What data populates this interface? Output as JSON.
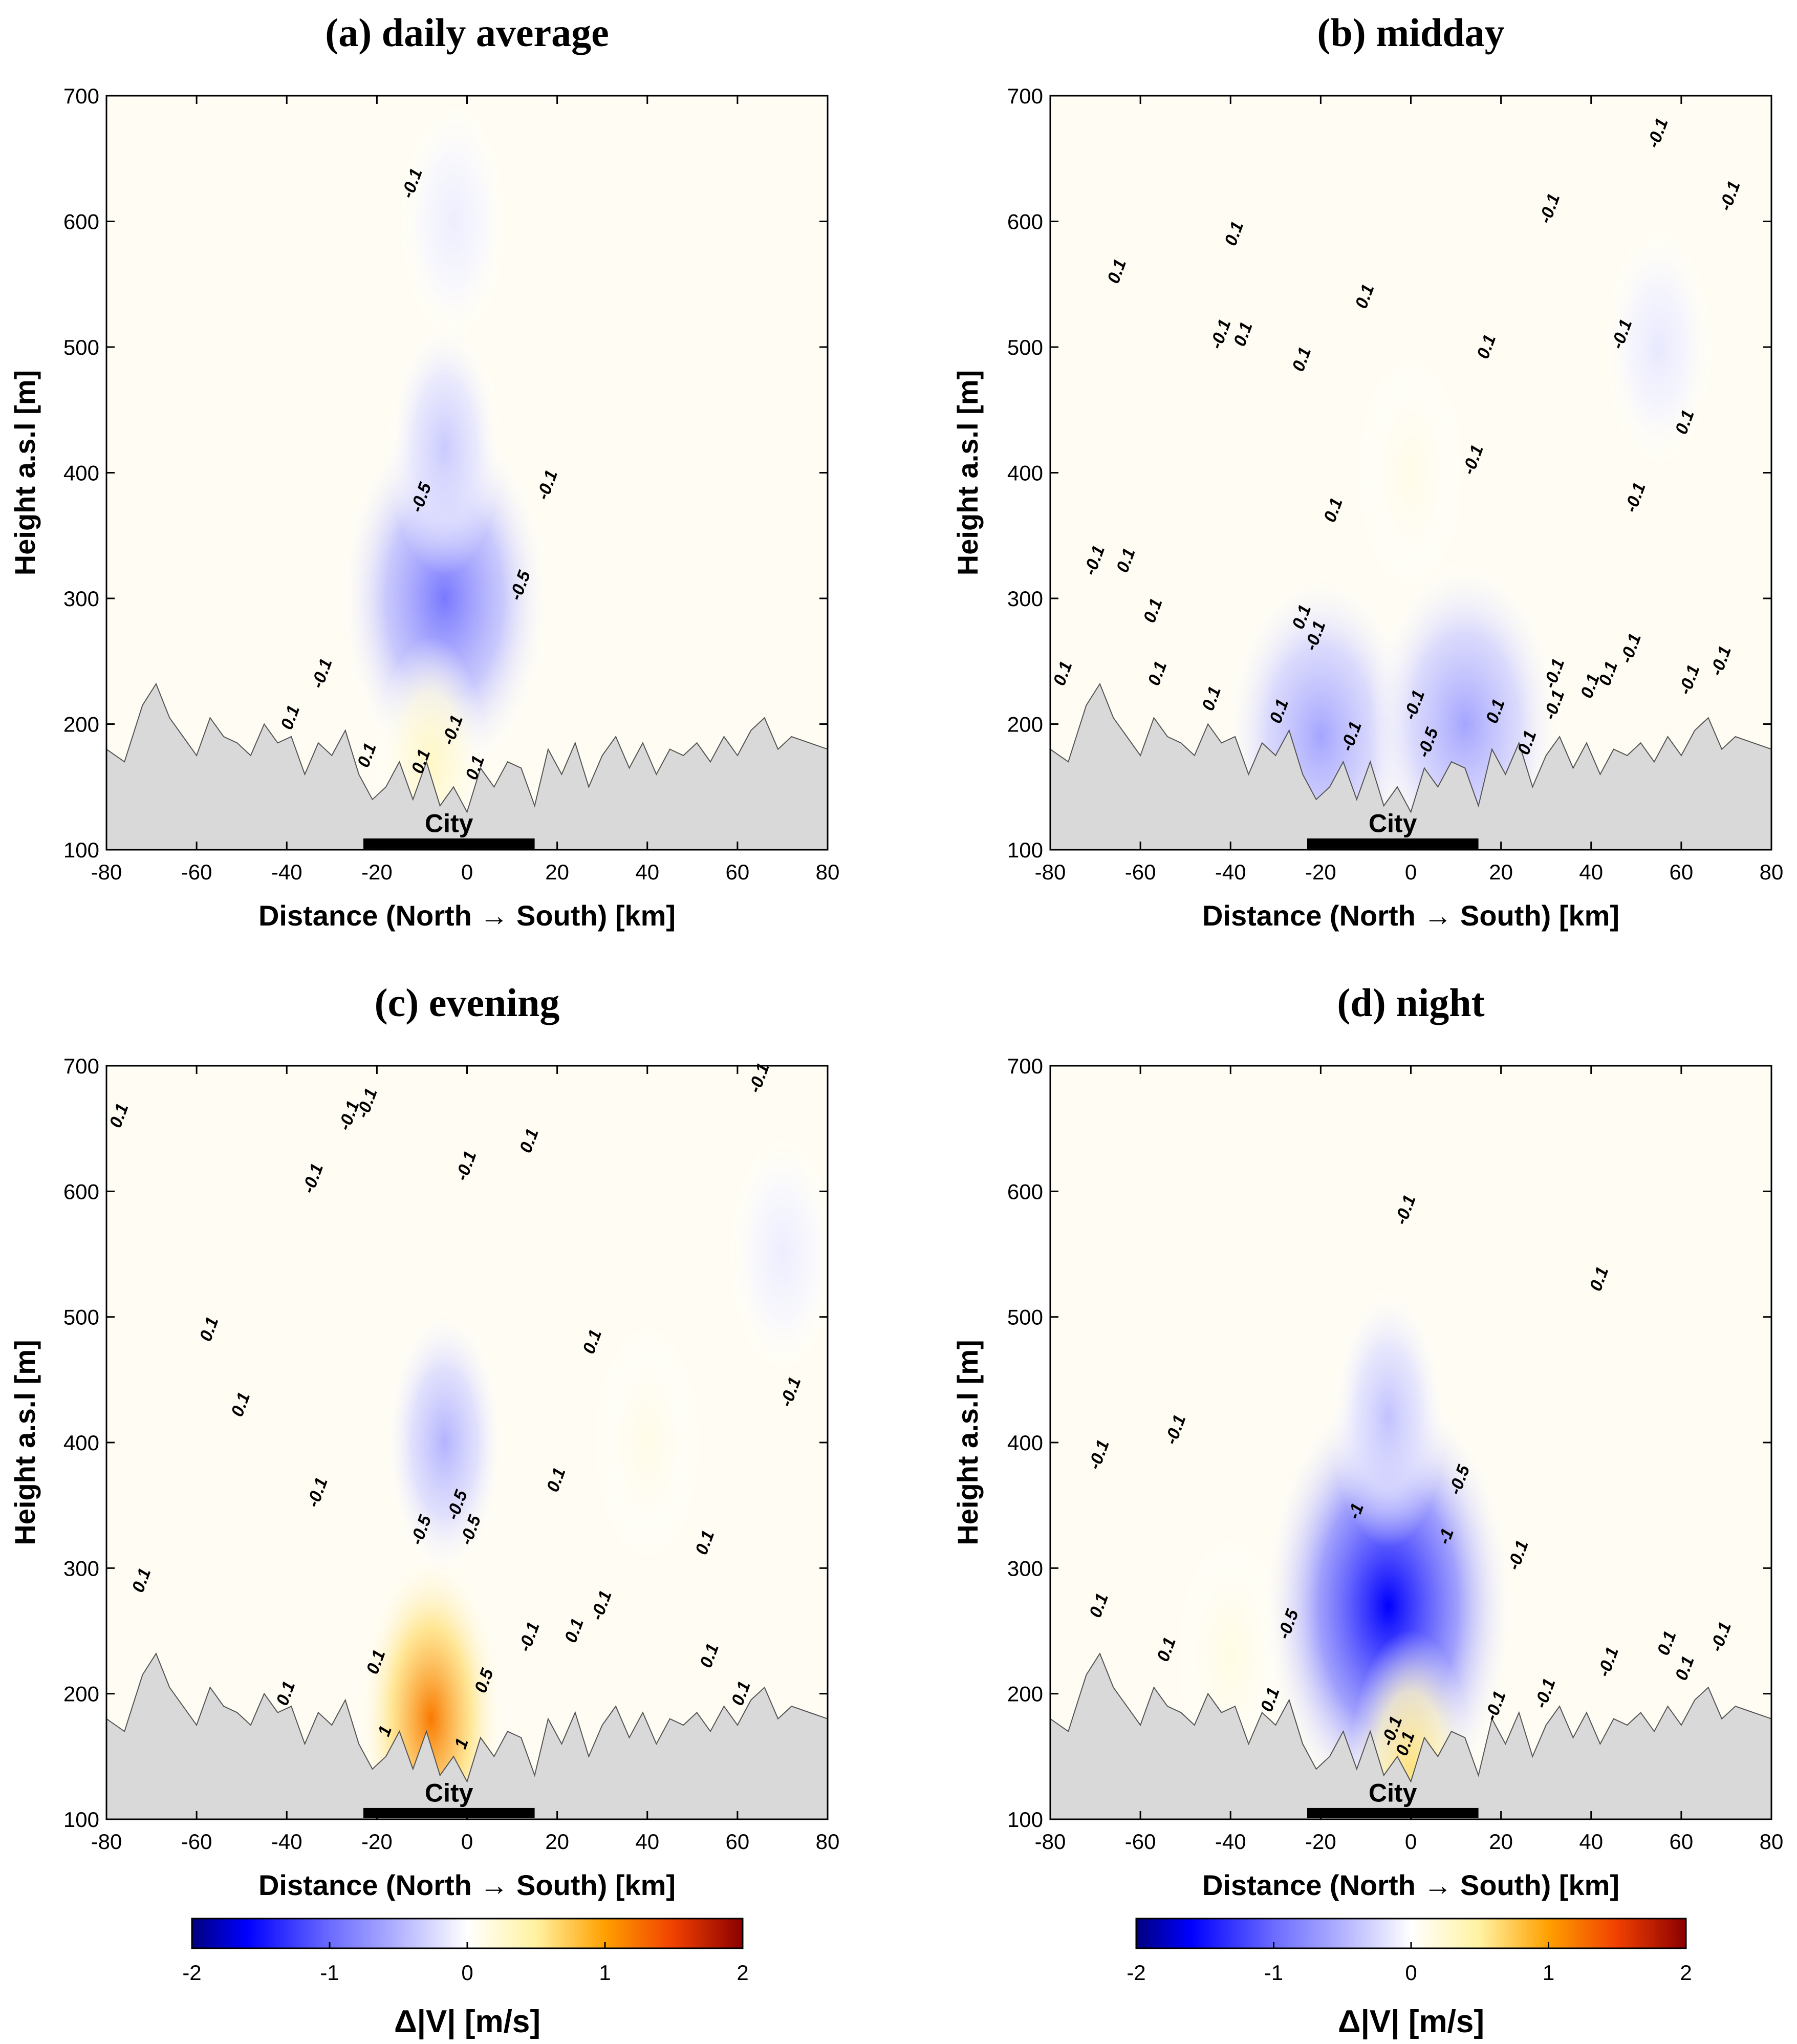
{
  "chart_data": [
    {
      "type": "heatmap",
      "title": "(a) daily average",
      "xlabel": "Distance (North → South) [km]",
      "ylabel": "Height a.s.l [m]",
      "xlim": [
        -80,
        80
      ],
      "ylim": [
        100,
        700
      ],
      "xticks": [
        -80,
        -60,
        -40,
        -20,
        0,
        20,
        40,
        60,
        80
      ],
      "yticks": [
        100,
        200,
        300,
        400,
        500,
        600,
        700
      ],
      "city_label": "City",
      "city_extent": [
        -23,
        15
      ],
      "anomalies": [
        {
          "x": -5,
          "y": 300,
          "value": -0.9
        },
        {
          "x": -5,
          "y": 420,
          "value": -0.35
        },
        {
          "x": -3,
          "y": 600,
          "value": -0.12
        },
        {
          "x": -8,
          "y": 170,
          "value": 0.3
        }
      ],
      "contour_labels": [
        {
          "x": -12,
          "y": 630,
          "text": "-0.1"
        },
        {
          "x": -10,
          "y": 380,
          "text": "-0.5"
        },
        {
          "x": 12,
          "y": 310,
          "text": "-0.5"
        },
        {
          "x": 18,
          "y": 390,
          "text": "-0.1"
        },
        {
          "x": -32,
          "y": 240,
          "text": "-0.1"
        },
        {
          "x": -39,
          "y": 205,
          "text": "0.1"
        },
        {
          "x": -22,
          "y": 175,
          "text": "0.1"
        },
        {
          "x": -10,
          "y": 170,
          "text": "0.1"
        },
        {
          "x": -3,
          "y": 195,
          "text": "-0.1"
        },
        {
          "x": 2,
          "y": 165,
          "text": "0.1"
        }
      ]
    },
    {
      "type": "heatmap",
      "title": "(b) midday",
      "xlabel": "Distance (North → South) [km]",
      "ylabel": "Height a.s.l [m]",
      "xlim": [
        -80,
        80
      ],
      "ylim": [
        100,
        700
      ],
      "xticks": [
        -80,
        -60,
        -40,
        -20,
        0,
        20,
        40,
        60,
        80
      ],
      "yticks": [
        100,
        200,
        300,
        400,
        500,
        600,
        700
      ],
      "city_label": "City",
      "city_extent": [
        -23,
        15
      ],
      "anomalies": [
        {
          "x": -20,
          "y": 190,
          "value": -0.6
        },
        {
          "x": 12,
          "y": 200,
          "value": -0.6
        },
        {
          "x": 0,
          "y": 400,
          "value": 0.12
        },
        {
          "x": 55,
          "y": 500,
          "value": -0.15
        }
      ],
      "contour_labels": [
        {
          "x": -77,
          "y": 240,
          "text": "0.1"
        },
        {
          "x": -70,
          "y": 330,
          "text": "-0.1"
        },
        {
          "x": -63,
          "y": 330,
          "text": "0.1"
        },
        {
          "x": -65,
          "y": 560,
          "text": "0.1"
        },
        {
          "x": -57,
          "y": 290,
          "text": "0.1"
        },
        {
          "x": -56,
          "y": 240,
          "text": "0.1"
        },
        {
          "x": -44,
          "y": 220,
          "text": "0.1"
        },
        {
          "x": -42,
          "y": 510,
          "text": "-0.1"
        },
        {
          "x": -39,
          "y": 590,
          "text": "0.1"
        },
        {
          "x": -37,
          "y": 510,
          "text": "0.1"
        },
        {
          "x": -29,
          "y": 210,
          "text": "0.1"
        },
        {
          "x": -24,
          "y": 490,
          "text": "0.1"
        },
        {
          "x": -24,
          "y": 285,
          "text": "0.1"
        },
        {
          "x": -21,
          "y": 270,
          "text": "-0.1"
        },
        {
          "x": -17,
          "y": 370,
          "text": "0.1"
        },
        {
          "x": -13,
          "y": 190,
          "text": "-0.1"
        },
        {
          "x": -10,
          "y": 540,
          "text": "0.1"
        },
        {
          "x": 1,
          "y": 215,
          "text": "-0.1"
        },
        {
          "x": 4,
          "y": 185,
          "text": "-0.5"
        },
        {
          "x": 14,
          "y": 410,
          "text": "-0.1"
        },
        {
          "x": 17,
          "y": 500,
          "text": "0.1"
        },
        {
          "x": 19,
          "y": 210,
          "text": "0.1"
        },
        {
          "x": 26,
          "y": 185,
          "text": "0.1"
        },
        {
          "x": 31,
          "y": 610,
          "text": "-0.1"
        },
        {
          "x": 32,
          "y": 240,
          "text": "-0.1"
        },
        {
          "x": 32,
          "y": 215,
          "text": "-0.1"
        },
        {
          "x": 40,
          "y": 230,
          "text": "0.1"
        },
        {
          "x": 44,
          "y": 240,
          "text": "0.1"
        },
        {
          "x": 47,
          "y": 510,
          "text": "-0.1"
        },
        {
          "x": 49,
          "y": 260,
          "text": "-0.1"
        },
        {
          "x": 50,
          "y": 380,
          "text": "-0.1"
        },
        {
          "x": 61,
          "y": 440,
          "text": "0.1"
        },
        {
          "x": 62,
          "y": 235,
          "text": "-0.1"
        },
        {
          "x": 69,
          "y": 250,
          "text": "-0.1"
        },
        {
          "x": 55,
          "y": 670,
          "text": "-0.1"
        },
        {
          "x": 71,
          "y": 620,
          "text": "-0.1"
        }
      ]
    },
    {
      "type": "heatmap",
      "title": "(c) evening",
      "xlabel": "Distance (North → South) [km]",
      "ylabel": "Height a.s.l [m]",
      "xlim": [
        -80,
        80
      ],
      "ylim": [
        100,
        700
      ],
      "xticks": [
        -80,
        -60,
        -40,
        -20,
        0,
        20,
        40,
        60,
        80
      ],
      "yticks": [
        100,
        200,
        300,
        400,
        500,
        600,
        700
      ],
      "city_label": "City",
      "city_extent": [
        -23,
        15
      ],
      "anomalies": [
        {
          "x": -8,
          "y": 180,
          "value": 1.2
        },
        {
          "x": -5,
          "y": 400,
          "value": -0.5
        },
        {
          "x": 40,
          "y": 400,
          "value": 0.12
        },
        {
          "x": 70,
          "y": 550,
          "value": -0.12
        }
      ],
      "contour_labels": [
        {
          "x": -77,
          "y": 660,
          "text": "0.1"
        },
        {
          "x": -57,
          "y": 490,
          "text": "0.1"
        },
        {
          "x": -50,
          "y": 430,
          "text": "0.1"
        },
        {
          "x": -34,
          "y": 610,
          "text": "-0.1"
        },
        {
          "x": -33,
          "y": 360,
          "text": "-0.1"
        },
        {
          "x": -26,
          "y": 660,
          "text": "-0.1"
        },
        {
          "x": -22,
          "y": 670,
          "text": "-0.1"
        },
        {
          "x": -10,
          "y": 330,
          "text": "-0.5"
        },
        {
          "x": 0,
          "y": 620,
          "text": "-0.1"
        },
        {
          "x": -2,
          "y": 350,
          "text": "-0.5"
        },
        {
          "x": 1,
          "y": 330,
          "text": "-0.5"
        },
        {
          "x": 14,
          "y": 640,
          "text": "0.1"
        },
        {
          "x": -72,
          "y": 290,
          "text": "0.1"
        },
        {
          "x": -40,
          "y": 200,
          "text": "0.1"
        },
        {
          "x": -20,
          "y": 225,
          "text": "0.1"
        },
        {
          "x": -18,
          "y": 170,
          "text": "1"
        },
        {
          "x": -1,
          "y": 160,
          "text": "1"
        },
        {
          "x": 4,
          "y": 210,
          "text": "0.5"
        },
        {
          "x": 14,
          "y": 245,
          "text": "-0.1"
        },
        {
          "x": 20,
          "y": 370,
          "text": "0.1"
        },
        {
          "x": 24,
          "y": 250,
          "text": "0.1"
        },
        {
          "x": 30,
          "y": 270,
          "text": "-0.1"
        },
        {
          "x": 28,
          "y": 480,
          "text": "0.1"
        },
        {
          "x": 53,
          "y": 320,
          "text": "0.1"
        },
        {
          "x": 54,
          "y": 230,
          "text": "0.1"
        },
        {
          "x": 61,
          "y": 200,
          "text": "0.1"
        },
        {
          "x": 72,
          "y": 440,
          "text": "-0.1"
        },
        {
          "x": 65,
          "y": 690,
          "text": "-0.1"
        }
      ]
    },
    {
      "type": "heatmap",
      "title": "(d) night",
      "xlabel": "Distance (North → South) [km]",
      "ylabel": "Height a.s.l [m]",
      "xlim": [
        -80,
        80
      ],
      "ylim": [
        100,
        700
      ],
      "xticks": [
        -80,
        -60,
        -40,
        -20,
        0,
        20,
        40,
        60,
        80
      ],
      "yticks": [
        100,
        200,
        300,
        400,
        500,
        600,
        700
      ],
      "city_label": "City",
      "city_extent": [
        -23,
        15
      ],
      "anomalies": [
        {
          "x": -5,
          "y": 270,
          "value": -1.6
        },
        {
          "x": -5,
          "y": 420,
          "value": -0.4
        },
        {
          "x": 0,
          "y": 140,
          "value": 0.6
        },
        {
          "x": -40,
          "y": 230,
          "value": 0.15
        }
      ],
      "contour_labels": [
        {
          "x": -1,
          "y": 585,
          "text": "-0.1"
        },
        {
          "x": 42,
          "y": 530,
          "text": "0.1"
        },
        {
          "x": -69,
          "y": 390,
          "text": "-0.1"
        },
        {
          "x": -52,
          "y": 410,
          "text": "-0.1"
        },
        {
          "x": -12,
          "y": 345,
          "text": "-1"
        },
        {
          "x": 11,
          "y": 370,
          "text": "-0.5"
        },
        {
          "x": 8,
          "y": 325,
          "text": "-1"
        },
        {
          "x": 24,
          "y": 310,
          "text": "-0.1"
        },
        {
          "x": -69,
          "y": 270,
          "text": "0.1"
        },
        {
          "x": -54,
          "y": 235,
          "text": "0.1"
        },
        {
          "x": -27,
          "y": 255,
          "text": "-0.5"
        },
        {
          "x": -31,
          "y": 195,
          "text": "0.1"
        },
        {
          "x": -4,
          "y": 170,
          "text": "-0.1"
        },
        {
          "x": -1,
          "y": 160,
          "text": "0.1"
        },
        {
          "x": 19,
          "y": 190,
          "text": "-0.1"
        },
        {
          "x": 30,
          "y": 200,
          "text": "-0.1"
        },
        {
          "x": 44,
          "y": 225,
          "text": "-0.1"
        },
        {
          "x": 57,
          "y": 240,
          "text": "0.1"
        },
        {
          "x": 61,
          "y": 220,
          "text": "0.1"
        },
        {
          "x": 69,
          "y": 245,
          "text": "-0.1"
        }
      ]
    }
  ],
  "terrain_km": [
    -80,
    -76,
    -72,
    -69,
    -66,
    -63,
    -60,
    -57,
    -54,
    -51,
    -48,
    -45,
    -42,
    -39,
    -36,
    -33,
    -30,
    -27,
    -24,
    -21,
    -18,
    -15,
    -12,
    -9,
    -6,
    -3,
    0,
    3,
    6,
    9,
    12,
    15,
    18,
    21,
    24,
    27,
    30,
    33,
    36,
    39,
    42,
    45,
    48,
    51,
    54,
    57,
    60,
    63,
    66,
    69,
    72,
    76,
    80
  ],
  "terrain_m": [
    180,
    170,
    215,
    232,
    205,
    190,
    175,
    205,
    190,
    185,
    175,
    200,
    185,
    190,
    160,
    185,
    175,
    195,
    160,
    140,
    150,
    170,
    140,
    170,
    135,
    150,
    130,
    165,
    150,
    170,
    165,
    135,
    180,
    160,
    185,
    150,
    175,
    190,
    165,
    185,
    160,
    180,
    175,
    185,
    170,
    190,
    175,
    195,
    205,
    180,
    190,
    185,
    180
  ],
  "colorbars": [
    {
      "label": "Δ|V| [m/s]",
      "range": [
        -2,
        2
      ],
      "ticks": [
        -2,
        -1,
        0,
        1,
        2
      ],
      "stops": [
        {
          "value": -2,
          "color": "#00007f"
        },
        {
          "value": -1.6,
          "color": "#0000ff"
        },
        {
          "value": -1,
          "color": "#6b6bff"
        },
        {
          "value": -0.5,
          "color": "#b3b3ff"
        },
        {
          "value": 0,
          "color": "#ffffff"
        },
        {
          "value": 0.5,
          "color": "#fff2a0"
        },
        {
          "value": 1,
          "color": "#ffa000"
        },
        {
          "value": 1.5,
          "color": "#f04000"
        },
        {
          "value": 2,
          "color": "#8b0000"
        }
      ]
    },
    {
      "label": "Δ|V| [m/s]",
      "range": [
        -2,
        2
      ],
      "ticks": [
        -2,
        -1,
        0,
        1,
        2
      ]
    }
  ]
}
